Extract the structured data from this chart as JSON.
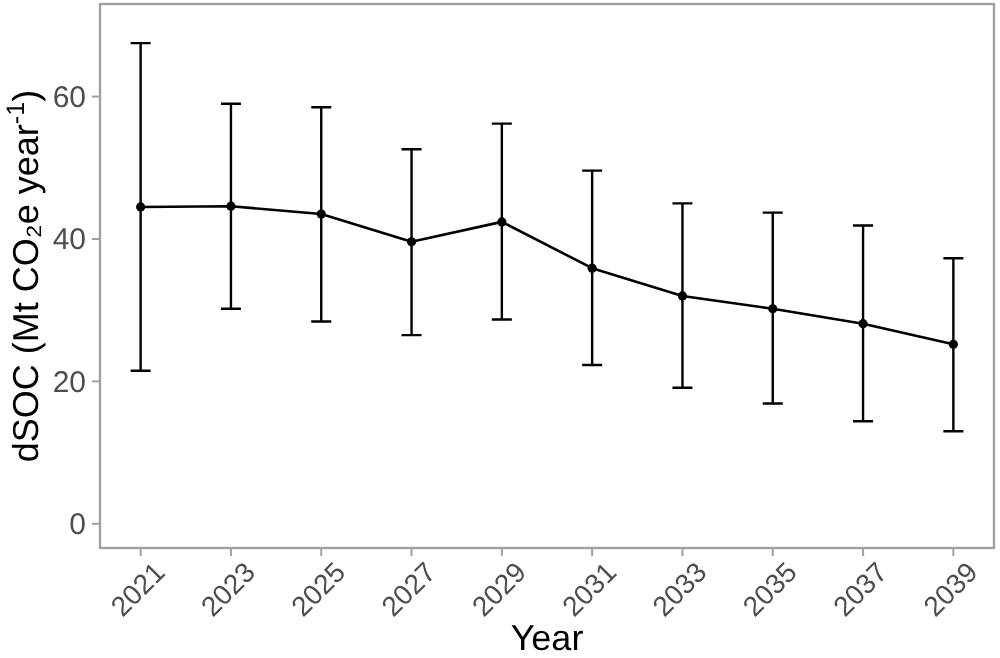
{
  "chart_data": {
    "type": "line",
    "xlabel": "Year",
    "ylabel": "dSOC (Mt CO₂e year$^{-1}$)",
    "categories": [
      "2021",
      "2023",
      "2025",
      "2027",
      "2029",
      "2031",
      "2033",
      "2035",
      "2037",
      "2039"
    ],
    "series": [
      {
        "color": "#000000",
        "values": [
          44.5,
          44.6,
          43.5,
          39.6,
          42.4,
          35.9,
          32,
          30.2,
          28.1,
          25.2
        ],
        "errors": [
          [
            21.5,
            67.5
          ],
          [
            30.2,
            59
          ],
          [
            28.4,
            58.5
          ],
          [
            26.5,
            52.6
          ],
          [
            28.7,
            56.2
          ],
          [
            22.3,
            49.6
          ],
          [
            19.1,
            45
          ],
          [
            16.9,
            43.7
          ],
          [
            14.4,
            41.9
          ],
          [
            13,
            37.3
          ]
        ]
      }
    ],
    "ylim": [
      -3.4,
      73
    ],
    "yticks": [
      0,
      20,
      40,
      60
    ],
    "grid": false,
    "marker": "circle",
    "line_style": "solid"
  }
}
